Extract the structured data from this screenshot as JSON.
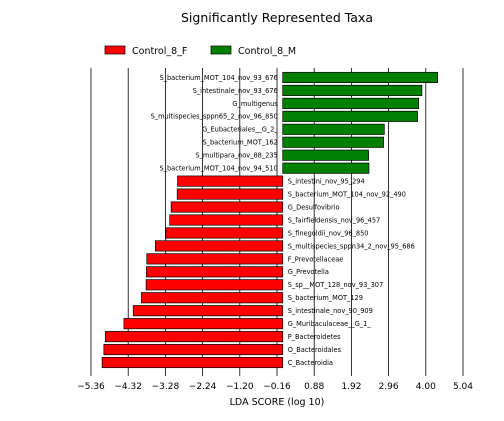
{
  "chart_data": {
    "type": "bar",
    "orientation": "horizontal",
    "title": "Significantly Represented Taxa",
    "xlabel": "LDA SCORE (log 10)",
    "ylabel": "",
    "xlim": [
      -5.36,
      5.04
    ],
    "xticks": [
      -5.36,
      -4.32,
      -3.28,
      -2.24,
      -1.2,
      -0.16,
      0.88,
      1.92,
      2.96,
      4.0,
      5.04
    ],
    "xtick_labels": [
      "−5.36",
      "−4.32",
      "−3.28",
      "−2.24",
      "−1.20",
      "−0.16",
      "0.88",
      "1.92",
      "2.96",
      "4.00",
      "5.04"
    ],
    "grid": "vertical",
    "legend_position": "top-left",
    "legend": [
      {
        "label": "Control_8_F",
        "color": "#ff0000"
      },
      {
        "label": "Control_8_M",
        "color": "#008000"
      }
    ],
    "bars": [
      {
        "label": "S_bacterium_MOT_104_nov_93_676",
        "value": 4.33,
        "group": "Control_8_M"
      },
      {
        "label": "S_intestinale_nov_93_676",
        "value": 3.89,
        "group": "Control_8_M"
      },
      {
        "label": "G_multigenus",
        "value": 3.8,
        "group": "Control_8_M"
      },
      {
        "label": "S_multispecies_sppn65_2_nov_96_850",
        "value": 3.77,
        "group": "Control_8_M"
      },
      {
        "label": "G_Eubacteriales__G_2_",
        "value": 2.84,
        "group": "Control_8_M"
      },
      {
        "label": "S_bacterium_MOT_162",
        "value": 2.82,
        "group": "Control_8_M"
      },
      {
        "label": "S_multipara_nov_88_235",
        "value": 2.4,
        "group": "Control_8_M"
      },
      {
        "label": "S_bacterium_MOT_104_nov_94_510",
        "value": 2.41,
        "group": "Control_8_M"
      },
      {
        "label": "S_intestini_nov_95_294",
        "value": -2.94,
        "group": "Control_8_F"
      },
      {
        "label": "S_bacterium_MOT_104_nov_92_490",
        "value": -2.95,
        "group": "Control_8_F"
      },
      {
        "label": "G_Desulfovibrio",
        "value": -3.12,
        "group": "Control_8_F"
      },
      {
        "label": "S_fairfieldensis_nov_96_457",
        "value": -3.16,
        "group": "Control_8_F"
      },
      {
        "label": "S_finegoldii_nov_96_850",
        "value": -3.27,
        "group": "Control_8_F"
      },
      {
        "label": "S_multispecies_sppn34_2_nov_95_686",
        "value": -3.56,
        "group": "Control_8_F"
      },
      {
        "label": "F_Prevotellaceae",
        "value": -3.8,
        "group": "Control_8_F"
      },
      {
        "label": "G_Prevotella",
        "value": -3.81,
        "group": "Control_8_F"
      },
      {
        "label": "S_sp__MOT_128_nov_93_307",
        "value": -3.82,
        "group": "Control_8_F"
      },
      {
        "label": "S_bacterium_MOT_129",
        "value": -3.95,
        "group": "Control_8_F"
      },
      {
        "label": "S_intestinale_nov_90_909",
        "value": -4.18,
        "group": "Control_8_F"
      },
      {
        "label": "G_Muribaculaceae__G_1_",
        "value": -4.44,
        "group": "Control_8_F"
      },
      {
        "label": "P_Bacteroidetes",
        "value": -4.96,
        "group": "Control_8_F"
      },
      {
        "label": "O_Bacteroidales",
        "value": -5.0,
        "group": "Control_8_F"
      },
      {
        "label": "C_Bacteroidia",
        "value": -5.05,
        "group": "Control_8_F"
      }
    ]
  }
}
